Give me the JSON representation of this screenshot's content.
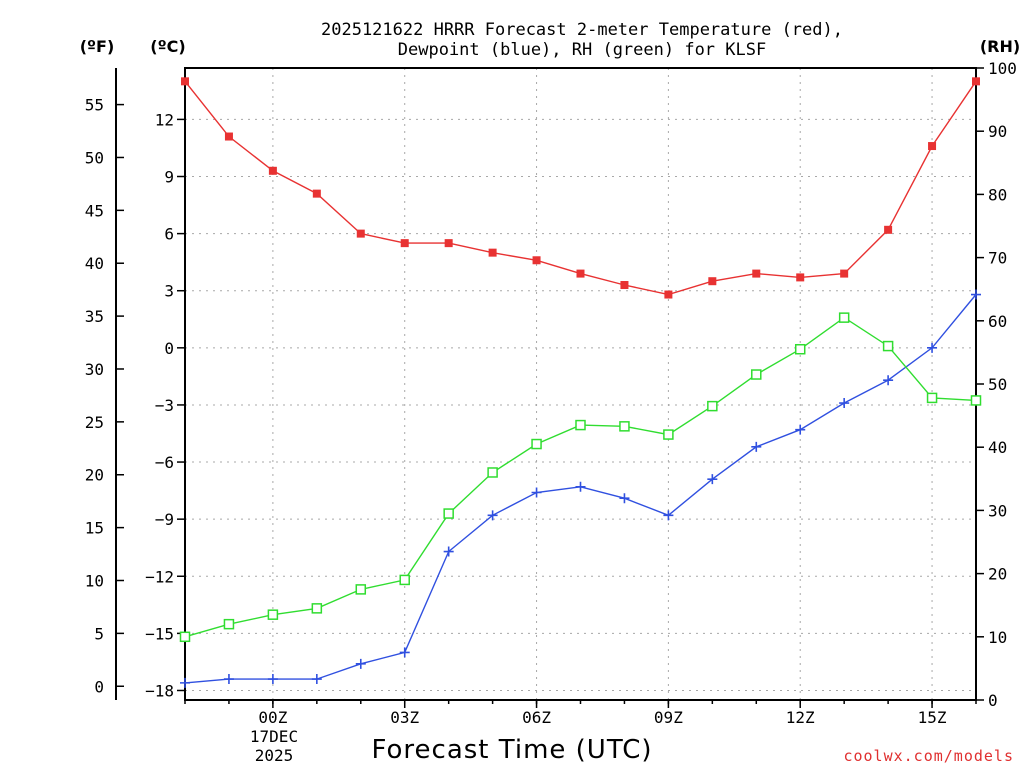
{
  "chart_data": {
    "type": "line",
    "title_lines": [
      "2025121622 HRRR Forecast 2-meter Temperature (red),",
      "Dewpoint (blue), RH (green) for KLSF"
    ],
    "xlabel": "Forecast Time (UTC)",
    "credit": "coolwx.com/models",
    "axes": {
      "fahrenheit": {
        "label": "(ºF)",
        "ticks": [
          0,
          5,
          10,
          15,
          20,
          25,
          30,
          35,
          40,
          45,
          50,
          55
        ]
      },
      "celsius": {
        "label": "(ºC)",
        "range": [
          -18.5,
          14.7
        ],
        "ticks": [
          -18,
          -15,
          -12,
          -9,
          -6,
          -3,
          0,
          3,
          6,
          9,
          12
        ]
      },
      "rh": {
        "label": "(RH)",
        "range": [
          0,
          100
        ],
        "ticks": [
          0,
          10,
          20,
          30,
          40,
          50,
          60,
          70,
          80,
          90,
          100
        ]
      }
    },
    "x": {
      "range": [
        -2,
        16
      ],
      "ticks": [
        0,
        3,
        6,
        9,
        12,
        15
      ],
      "tick_labels": [
        "00Z",
        "03Z",
        "06Z",
        "09Z",
        "12Z",
        "15Z"
      ],
      "date_label": [
        "17DEC",
        "2025"
      ]
    },
    "grid": true,
    "hours": [
      -2,
      -1,
      0,
      1,
      2,
      3,
      4,
      5,
      6,
      7,
      8,
      9,
      10,
      11,
      12,
      13,
      14,
      15,
      16
    ],
    "series": [
      {
        "name": "2-meter Temperature",
        "axis": "celsius",
        "color": "#e83232",
        "marker": "filled-square",
        "values": [
          14.0,
          11.1,
          9.3,
          8.1,
          6.0,
          5.5,
          5.5,
          5.0,
          4.6,
          3.9,
          3.3,
          2.8,
          3.5,
          3.9,
          3.7,
          3.9,
          6.2,
          10.6,
          14.0
        ]
      },
      {
        "name": "Dewpoint",
        "axis": "celsius",
        "color": "#3050e0",
        "marker": "plus",
        "values": [
          -17.6,
          -17.4,
          -17.4,
          -17.4,
          -16.6,
          -16.0,
          -10.7,
          -8.8,
          -7.6,
          -7.3,
          -7.9,
          -8.8,
          -6.9,
          -5.2,
          -4.3,
          -2.9,
          -1.7,
          0.0,
          2.8
        ]
      },
      {
        "name": "Relative Humidity",
        "axis": "rh",
        "color": "#30dd30",
        "marker": "open-square",
        "values": [
          10,
          12,
          13.5,
          14.5,
          17.5,
          19,
          29.5,
          36,
          40.5,
          43.5,
          43.3,
          42,
          46.5,
          51.5,
          55.5,
          60.5,
          56,
          47.8,
          47.4
        ]
      }
    ]
  }
}
